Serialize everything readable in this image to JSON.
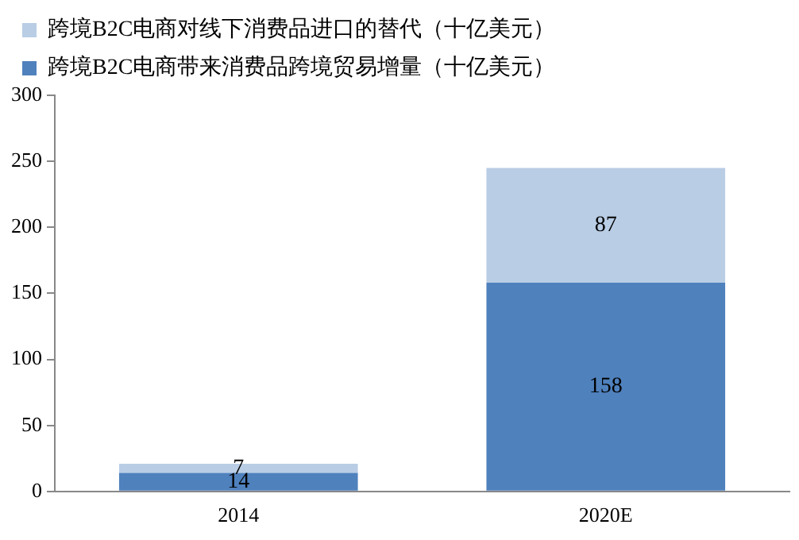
{
  "chart_data": {
    "type": "bar",
    "stacked": true,
    "categories": [
      "2014",
      "2020E"
    ],
    "series": [
      {
        "name": "跨境B2C电商带来消费品跨境贸易增量（十亿美元）",
        "color": "#4f81bd",
        "values": [
          14,
          158
        ]
      },
      {
        "name": "跨境B2C电商对线下消费品进口的替代（十亿美元）",
        "color": "#b9cde5",
        "values": [
          7,
          87
        ]
      }
    ],
    "ylim": [
      0,
      300
    ],
    "yticks": [
      0,
      50,
      100,
      150,
      200,
      250,
      300
    ],
    "grid": false,
    "legend": "top left",
    "data_labels": true
  }
}
